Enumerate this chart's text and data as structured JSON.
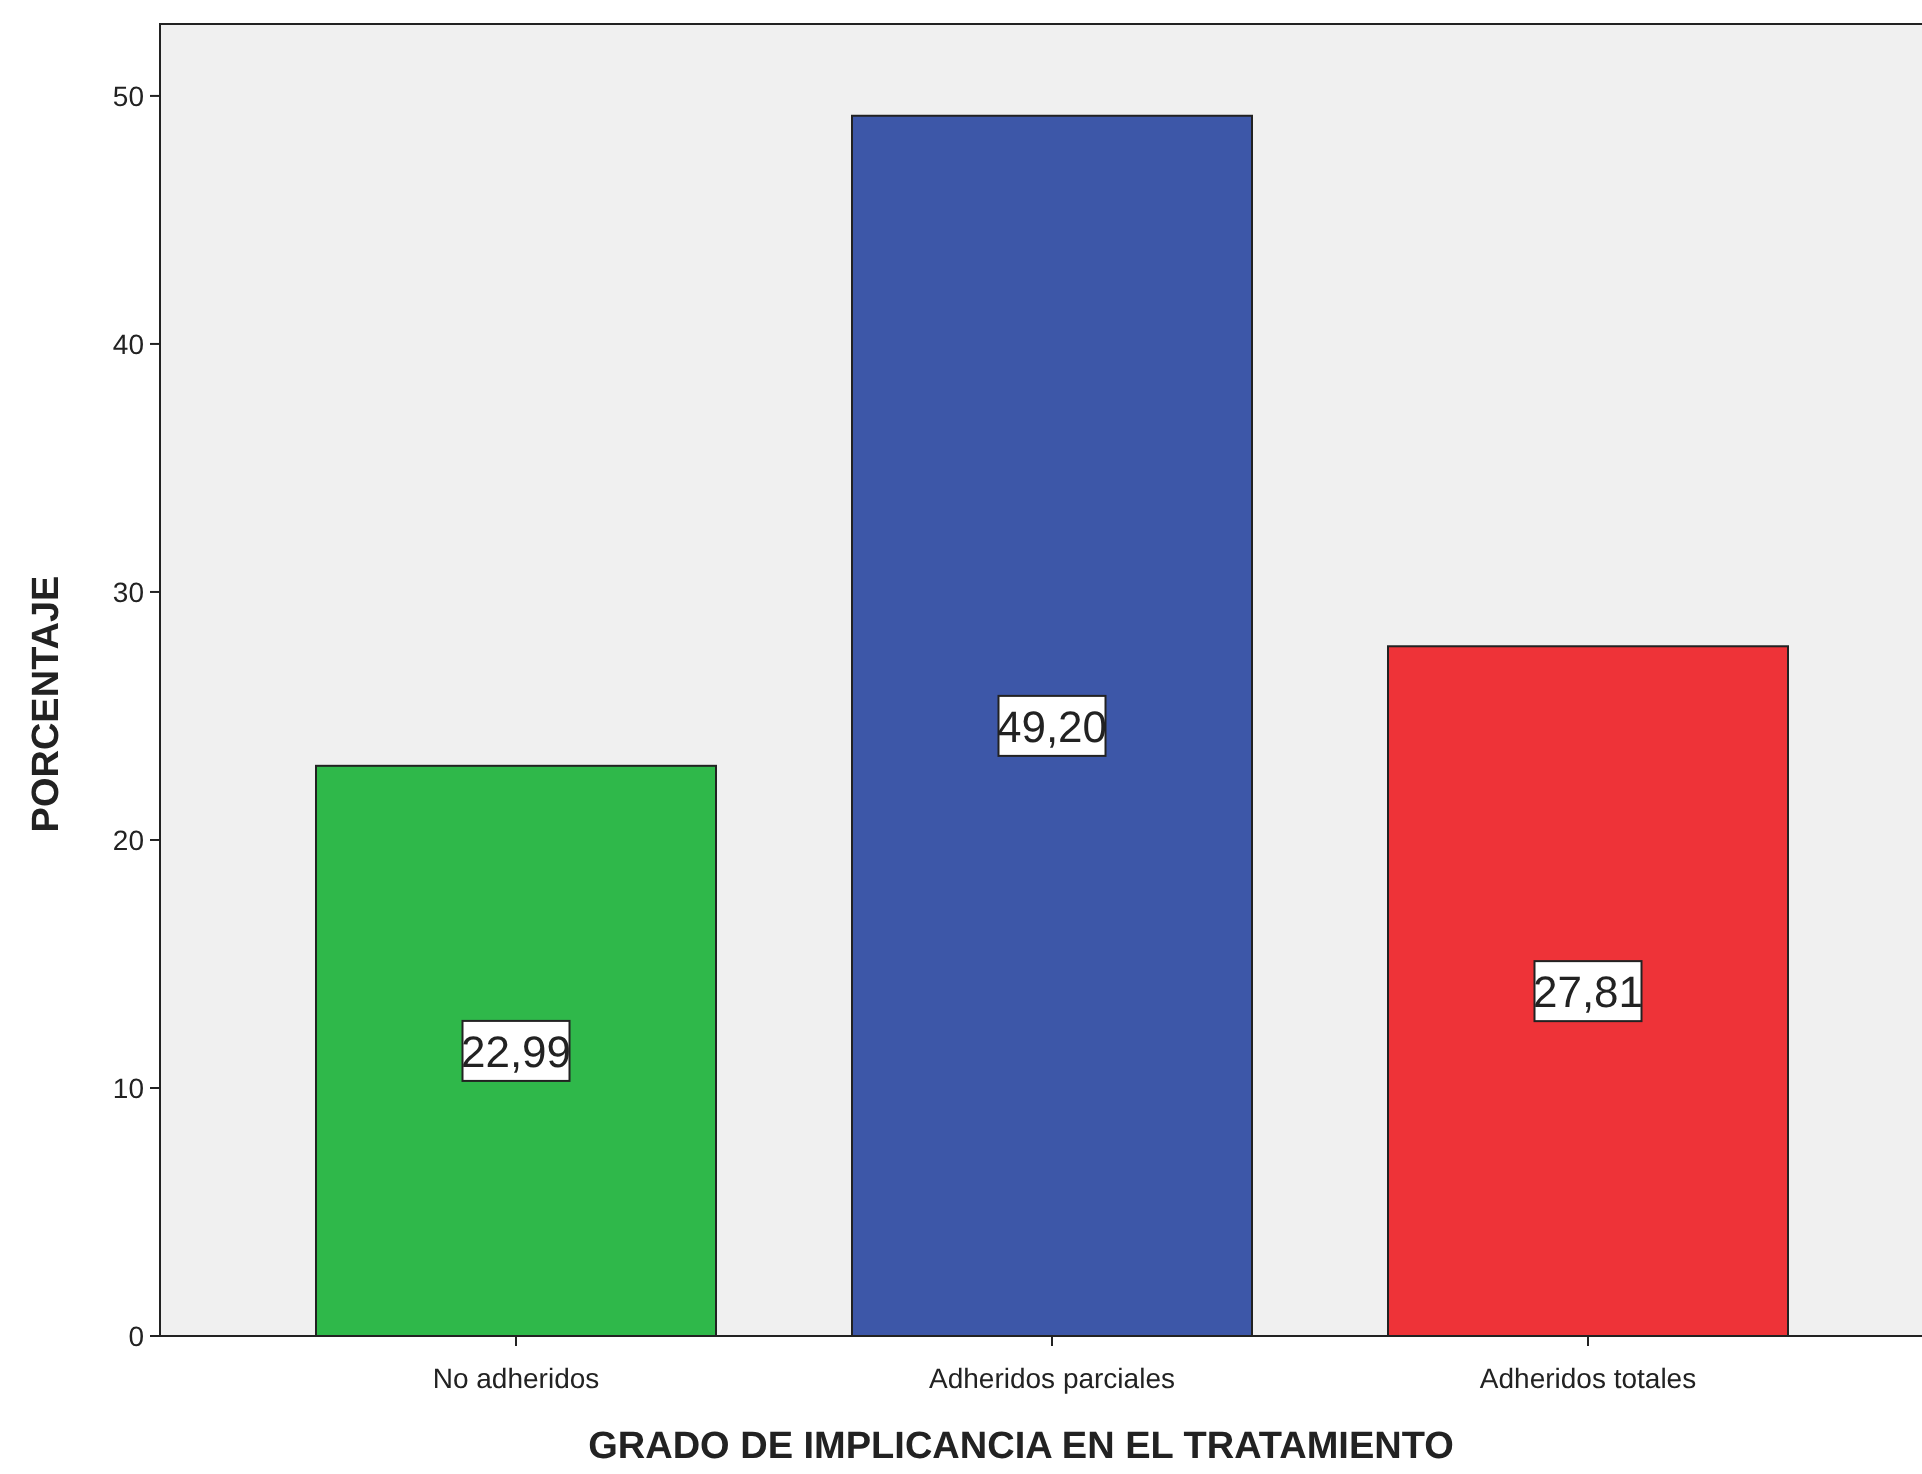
{
  "chart_data": {
    "type": "bar",
    "xlabel": "GRADO DE IMPLICANCIA EN EL TRATAMIENTO",
    "ylabel": "PORCENTAJE",
    "categories": [
      "No adheridos",
      "Adheridos parciales",
      "Adheridos totales"
    ],
    "values": [
      22.99,
      49.2,
      27.81
    ],
    "colors": [
      "#2fb84a",
      "#3d57a8",
      "#ee3338"
    ],
    "value_labels": [
      "22,99",
      "49,20",
      "27,81"
    ],
    "ylim": [
      0,
      52.9
    ],
    "yticks": [
      0,
      10,
      20,
      30,
      40,
      50
    ],
    "grid": false
  }
}
